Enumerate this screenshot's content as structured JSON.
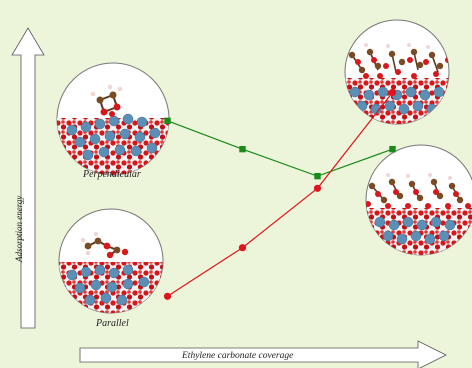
{
  "axes": {
    "y_label": "Adsorption energy",
    "x_label": "Ethylene carbonate coverage"
  },
  "insets": {
    "perpendicular_label": "Perpendicular",
    "parallel_label": "Parallel"
  },
  "chart_data": {
    "type": "line",
    "xlabel": "Ethylene carbonate coverage",
    "ylabel": "Adsorption energy",
    "x": [
      1,
      2,
      3,
      4
    ],
    "xlim": [
      0.5,
      4.5
    ],
    "ylim": [
      0,
      10
    ],
    "series": [
      {
        "name": "Perpendicular",
        "marker": "square",
        "color": "#1a8a1a",
        "values": [
          7.6,
          6.55,
          5.55,
          6.55
        ]
      },
      {
        "name": "Parallel",
        "marker": "circle",
        "color": "#e0141c",
        "values": [
          1.1,
          2.9,
          5.1,
          8.65
        ]
      }
    ],
    "grid": false,
    "legend": "none"
  },
  "colors": {
    "background": "#ecf5d9",
    "slab_oxygen": "#d8171b",
    "slab_metal": "#5b8fb5",
    "molecule_carbon": "#7a4a22"
  }
}
